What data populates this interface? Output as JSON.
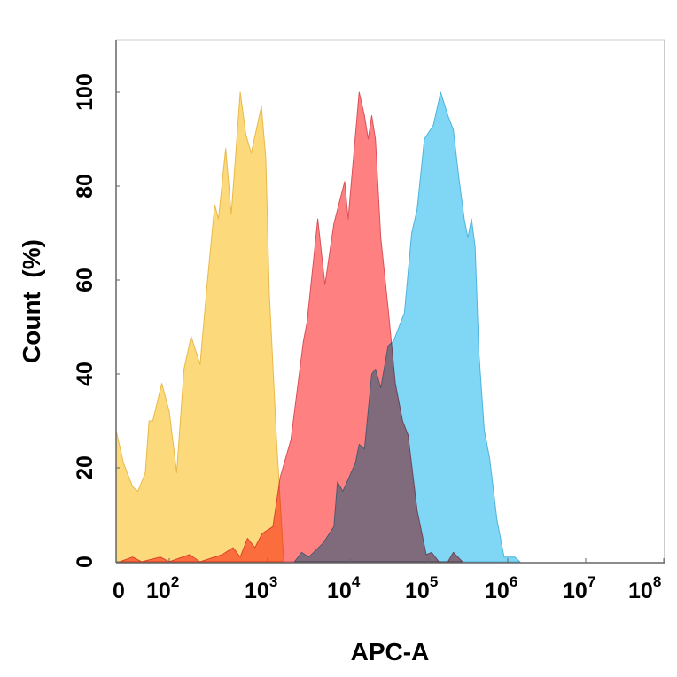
{
  "chart_data": {
    "type": "area",
    "xlabel": "APC-A",
    "ylabel": "Count  (%)",
    "xscale": "biexponential",
    "xlim": [
      0,
      100000000
    ],
    "ylim": [
      0,
      100
    ],
    "grid": false,
    "xticks": [
      {
        "value": 0,
        "base": "0",
        "exp": ""
      },
      {
        "value": 100,
        "base": "10",
        "exp": "2"
      },
      {
        "value": 1000,
        "base": "10",
        "exp": "3"
      },
      {
        "value": 10000,
        "base": "10",
        "exp": "4"
      },
      {
        "value": 100000,
        "base": "10",
        "exp": "5"
      },
      {
        "value": 1000000,
        "base": "10",
        "exp": "6"
      },
      {
        "value": 10000000,
        "base": "10",
        "exp": "7"
      },
      {
        "value": 100000000,
        "base": "10",
        "exp": "8"
      }
    ],
    "yticks": [
      {
        "value": 0,
        "label": "0"
      },
      {
        "value": 20,
        "label": "20"
      },
      {
        "value": 40,
        "label": "40"
      },
      {
        "value": 60,
        "label": "60"
      },
      {
        "value": 80,
        "label": "80"
      },
      {
        "value": 100,
        "label": "100"
      }
    ],
    "series": [
      {
        "color": "#fcd97a",
        "stroke": "#e8b94a",
        "blend": "normal",
        "x": [
          0,
          14,
          31,
          41,
          55,
          62,
          69,
          86,
          100,
          119,
          141,
          167,
          206,
          245,
          290,
          316,
          375,
          427,
          527,
          600,
          681,
          865,
          958,
          1050,
          1285,
          1570
        ],
        "y": [
          28,
          21,
          16,
          15,
          19,
          30,
          30,
          38,
          32,
          19,
          41,
          48,
          42,
          60,
          76,
          73,
          88,
          74,
          100,
          91,
          87,
          97,
          86,
          57,
          26,
          0
        ]
      },
      {
        "color": "#7fd6f5",
        "stroke": "#4fb3dc",
        "blend": "normal",
        "x": [
          2120,
          2590,
          3160,
          4720,
          6370,
          7040,
          8180,
          11700,
          13100,
          15300,
          19000,
          21200,
          24800,
          30800,
          36100,
          42400,
          49900,
          61800,
          72400,
          89800,
          117000,
          144000,
          178000,
          208000,
          243000,
          285000,
          316000,
          351000,
          390000,
          433000,
          507000,
          593000,
          731000,
          901000,
          1230000,
          1440000
        ],
        "y": [
          0,
          2,
          1,
          4,
          7.5,
          17,
          15,
          21,
          25,
          24,
          40,
          41,
          37,
          46,
          47,
          50,
          53,
          70,
          75,
          90,
          93,
          100,
          95,
          92,
          82,
          73,
          69,
          73,
          67,
          45,
          28,
          22,
          9,
          1,
          1,
          0
        ]
      },
      {
        "color": "#ff8080",
        "stroke": "#d9505a",
        "blend": "multiply",
        "x": [
          7,
          31,
          48,
          83,
          100,
          160,
          206,
          344,
          445,
          527,
          625,
          742,
          880,
          1160,
          1420,
          1920,
          2720,
          3010,
          4060,
          4960,
          6370,
          8610,
          9500,
          13100,
          15300,
          17100,
          19000,
          21200,
          24800,
          30800,
          38100,
          47200,
          55500,
          72400,
          94800,
          111000,
          137000,
          178000,
          208000,
          270000
        ],
        "y": [
          0,
          1,
          0,
          1,
          0,
          1.5,
          0,
          1.5,
          3,
          1,
          5,
          3,
          6,
          7.5,
          18,
          26,
          47,
          51,
          73,
          59,
          72,
          81,
          73,
          100,
          95,
          90,
          95,
          90,
          69,
          54,
          38,
          30,
          27,
          11,
          1.5,
          2,
          0,
          0,
          2,
          0
        ]
      }
    ]
  }
}
